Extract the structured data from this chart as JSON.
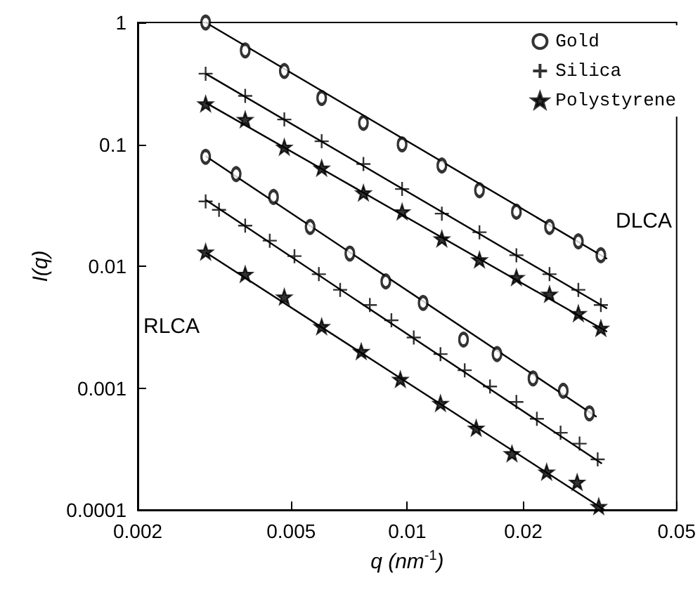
{
  "chart_data": {
    "type": "scatter",
    "xlabel": "q (nm$^{-1}$)",
    "ylabel": "I(q)",
    "log": "xy",
    "legend": "top right",
    "xlim": [
      0.002,
      0.05
    ],
    "xticks": [
      0.002,
      0.005,
      0.01,
      0.02,
      0.05
    ],
    "ylim": [
      0.0001,
      1
    ],
    "yticks": [
      0.0001,
      0.001,
      0.01,
      0.1,
      1
    ],
    "annotations": [
      "DLCA",
      "RLCA"
    ],
    "series": [
      {
        "name": "Gold",
        "color": "#000000",
        "marker": "circle",
        "x": [
          0.003,
          0.0038,
          0.0048,
          0.006,
          0.0077,
          0.0097,
          0.0123,
          0.0154,
          0.0192,
          0.0234,
          0.0278,
          0.0318,
          0.003,
          0.0036,
          0.0045,
          0.0056,
          0.0071,
          0.0088,
          0.011,
          0.014,
          0.0171,
          0.0212,
          0.0254,
          0.0297
        ],
        "values": [
          1.0,
          0.59,
          0.4,
          0.24,
          0.15,
          0.1,
          0.067,
          0.042,
          0.028,
          0.021,
          0.016,
          0.0123,
          0.079,
          0.057,
          0.037,
          0.021,
          0.0127,
          0.0075,
          0.005,
          0.0025,
          0.0019,
          0.0012,
          0.00095,
          0.00062
        ]
      },
      {
        "name": "Silica",
        "color": "#000000",
        "marker": "cross",
        "x": [
          0.003,
          0.0038,
          0.0048,
          0.006,
          0.0077,
          0.0097,
          0.0123,
          0.0154,
          0.0192,
          0.0234,
          0.0278,
          0.0318,
          0.003,
          0.00325,
          0.0038,
          0.0044,
          0.0051,
          0.0059,
          0.0067,
          0.008,
          0.0091,
          0.0104,
          0.0122,
          0.0141,
          0.0164,
          0.0192,
          0.0217,
          0.025,
          0.028,
          0.0312
        ],
        "values": [
          0.38,
          0.25,
          0.16,
          0.106,
          0.069,
          0.043,
          0.027,
          0.019,
          0.0123,
          0.0086,
          0.0064,
          0.0048,
          0.034,
          0.029,
          0.0215,
          0.0162,
          0.0121,
          0.0086,
          0.0064,
          0.0048,
          0.0036,
          0.0026,
          0.0019,
          0.0014,
          0.00103,
          0.00077,
          0.00056,
          0.00043,
          0.00035,
          0.00026
        ]
      },
      {
        "name": "Polystyrene",
        "color": "#000000",
        "marker": "star",
        "x": [
          0.003,
          0.0038,
          0.0048,
          0.006,
          0.0077,
          0.0097,
          0.0123,
          0.0154,
          0.0192,
          0.0234,
          0.0278,
          0.0318,
          0.003,
          0.0038,
          0.0048,
          0.006,
          0.0076,
          0.0096,
          0.0122,
          0.0151,
          0.0187,
          0.023,
          0.0276,
          0.0314
        ],
        "values": [
          0.215,
          0.16,
          0.095,
          0.064,
          0.04,
          0.028,
          0.0168,
          0.0113,
          0.0081,
          0.0059,
          0.0041,
          0.0031,
          0.0131,
          0.0086,
          0.0056,
          0.0032,
          0.002,
          0.00118,
          0.00075,
          0.00047,
          0.00029,
          0.000205,
          0.000169,
          0.000107
        ]
      },
      {
        "type": "line",
        "color": "#000000",
        "marker": "none",
        "x": [
          0.003,
          0.033
        ],
        "values": [
          1.0,
          0.0115
        ]
      },
      {
        "type": "line",
        "color": "#000000",
        "marker": "none",
        "x": [
          0.003,
          0.033
        ],
        "values": [
          0.38,
          0.0045
        ]
      },
      {
        "type": "line",
        "color": "#000000",
        "marker": "none",
        "x": [
          0.003,
          0.033
        ],
        "values": [
          0.22,
          0.0029
        ]
      },
      {
        "type": "line",
        "color": "#000000",
        "marker": "none",
        "x": [
          0.003,
          0.031
        ],
        "values": [
          0.08,
          0.00058
        ]
      },
      {
        "type": "line",
        "color": "#000000",
        "marker": "none",
        "x": [
          0.003,
          0.032
        ],
        "values": [
          0.035,
          0.00024
        ]
      },
      {
        "type": "line",
        "color": "#000000",
        "marker": "none",
        "x": [
          0.003,
          0.0325
        ],
        "values": [
          0.013,
          0.0001
        ]
      }
    ]
  }
}
